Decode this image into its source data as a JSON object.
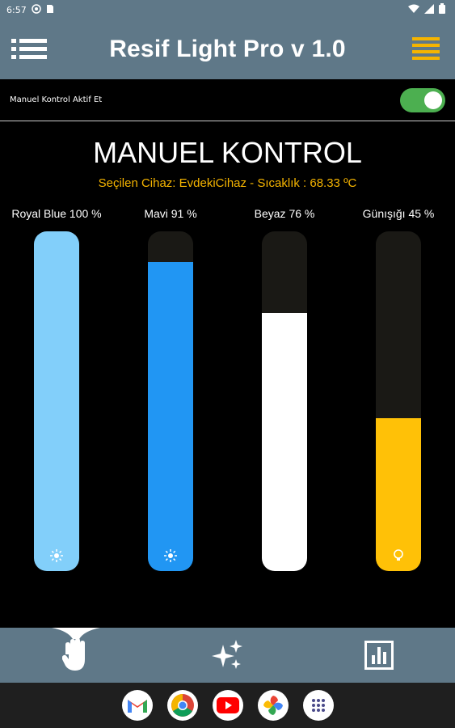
{
  "status_bar": {
    "time": "6:57"
  },
  "app_bar": {
    "title": "Resif Light Pro v 1.0"
  },
  "manual_toggle": {
    "label": "Manuel Kontrol Aktif Et",
    "enabled": true,
    "on_color": "#4caf50"
  },
  "page_title": "MANUEL KONTROL",
  "device_info": "Seçilen Cihaz: EvdekiCihaz - Sıcaklık : 68.33 ºC",
  "channels": [
    {
      "label": "Royal Blue 100 %",
      "level": 100,
      "color": "#82cffa",
      "icon": "sun-icon"
    },
    {
      "label": "Mavi 91 %",
      "level": 91,
      "color": "#2196f3",
      "icon": "sun-icon"
    },
    {
      "label": "Beyaz 76 %",
      "level": 76,
      "color": "#ffffff",
      "icon": "sun-icon"
    },
    {
      "label": "Günışığı 45 %",
      "level": 45,
      "color": "#ffc107",
      "icon": "bulb-icon"
    }
  ],
  "bottom_nav": {
    "items": [
      {
        "icon": "hand-icon",
        "active": true
      },
      {
        "icon": "sparkle-icon",
        "active": false
      },
      {
        "icon": "chart-icon",
        "active": false
      }
    ]
  },
  "taskbar": {
    "apps": [
      "gmail-icon",
      "chrome-icon",
      "youtube-icon",
      "photos-icon",
      "app-drawer-icon"
    ]
  }
}
